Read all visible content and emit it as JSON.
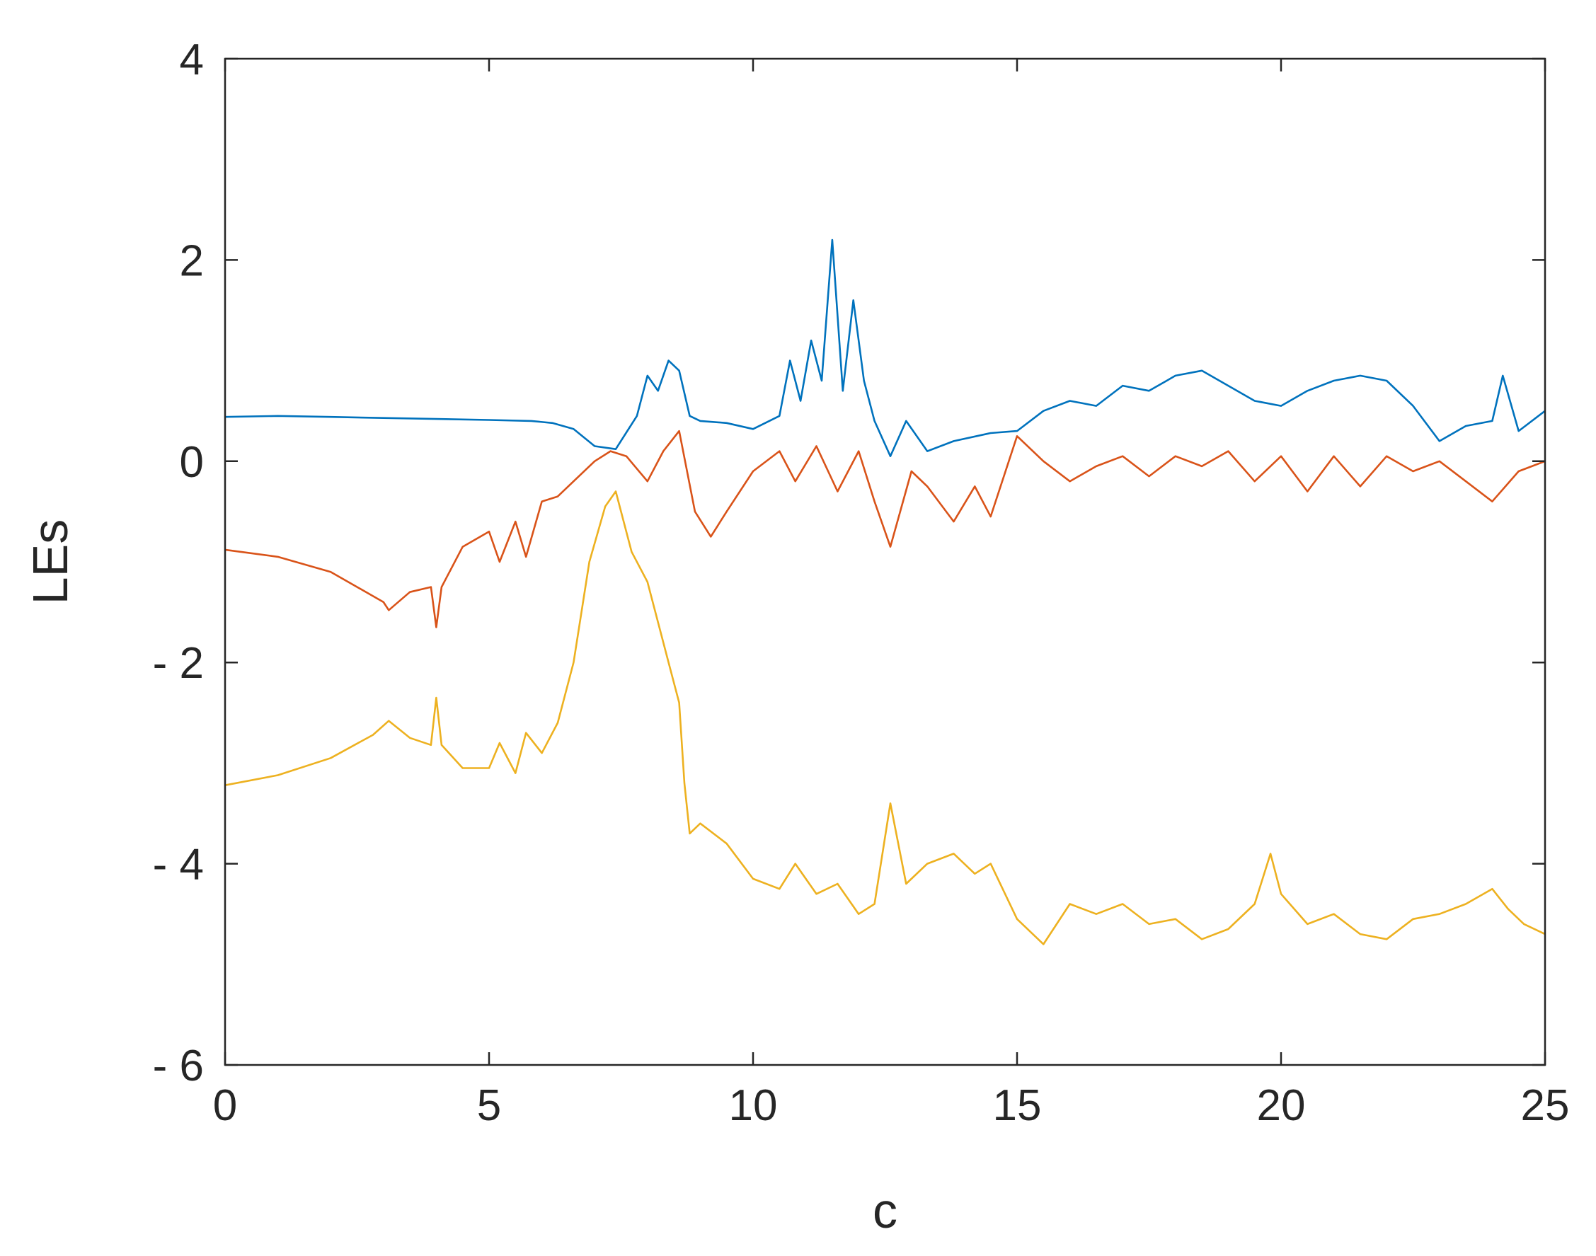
{
  "chart_data": {
    "type": "line",
    "xlabel": "c",
    "ylabel": "LEs",
    "xlim": [
      0,
      25
    ],
    "ylim": [
      -6,
      4
    ],
    "xticks": [
      0,
      5,
      10,
      15,
      20,
      25
    ],
    "xtick_labels": [
      "0",
      "5",
      "10",
      "15",
      "20",
      "25"
    ],
    "yticks": [
      -6,
      -4,
      -2,
      0,
      2,
      4
    ],
    "ytick_labels": [
      "- 6",
      "- 4",
      "- 2",
      "0",
      "2",
      "4"
    ],
    "grid": false,
    "legend": false,
    "box": true,
    "series": [
      {
        "color": "#0072BD",
        "x": [
          0,
          1,
          2,
          3,
          4,
          5,
          5.8,
          6.2,
          6.6,
          7.0,
          7.4,
          7.8,
          8.0,
          8.2,
          8.4,
          8.6,
          8.8,
          9.0,
          9.5,
          10.0,
          10.5,
          10.7,
          10.9,
          11.1,
          11.3,
          11.5,
          11.7,
          11.9,
          12.1,
          12.3,
          12.6,
          12.9,
          13.3,
          13.8,
          14.5,
          15.0,
          15.5,
          16.0,
          16.5,
          17.0,
          17.5,
          18.0,
          18.5,
          19.0,
          19.5,
          20.0,
          20.5,
          21.0,
          21.5,
          22.0,
          22.5,
          23.0,
          23.5,
          24.0,
          24.2,
          24.5,
          25.0
        ],
        "y": [
          0.44,
          0.45,
          0.44,
          0.43,
          0.42,
          0.41,
          0.4,
          0.38,
          0.32,
          0.15,
          0.12,
          0.45,
          0.85,
          0.7,
          1.0,
          0.9,
          0.45,
          0.4,
          0.38,
          0.32,
          0.45,
          1.0,
          0.6,
          1.2,
          0.8,
          2.2,
          0.7,
          1.6,
          0.8,
          0.4,
          0.05,
          0.4,
          0.1,
          0.2,
          0.28,
          0.3,
          0.5,
          0.6,
          0.55,
          0.75,
          0.7,
          0.85,
          0.9,
          0.75,
          0.6,
          0.55,
          0.7,
          0.8,
          0.85,
          0.8,
          0.55,
          0.2,
          0.35,
          0.4,
          0.85,
          0.3,
          0.5
        ]
      },
      {
        "color": "#D95319",
        "x": [
          0,
          1,
          2,
          3,
          3.1,
          3.5,
          3.9,
          4.0,
          4.1,
          4.5,
          5.0,
          5.2,
          5.5,
          5.7,
          6.0,
          6.3,
          6.6,
          7.0,
          7.3,
          7.6,
          8.0,
          8.3,
          8.6,
          8.9,
          9.2,
          9.5,
          10.0,
          10.5,
          10.8,
          11.2,
          11.6,
          12.0,
          12.3,
          12.6,
          13.0,
          13.3,
          13.8,
          14.2,
          14.5,
          15.0,
          15.5,
          16.0,
          16.5,
          17.0,
          17.5,
          18.0,
          18.5,
          19.0,
          19.5,
          20.0,
          20.5,
          21.0,
          21.5,
          22.0,
          22.5,
          23.0,
          23.5,
          24.0,
          24.5,
          25.0
        ],
        "y": [
          -0.88,
          -0.95,
          -1.1,
          -1.4,
          -1.48,
          -1.3,
          -1.25,
          -1.65,
          -1.25,
          -0.85,
          -0.7,
          -1.0,
          -0.6,
          -0.95,
          -0.4,
          -0.35,
          -0.2,
          0.0,
          0.1,
          0.05,
          -0.2,
          0.1,
          0.3,
          -0.5,
          -0.75,
          -0.5,
          -0.1,
          0.1,
          -0.2,
          0.15,
          -0.3,
          0.1,
          -0.4,
          -0.85,
          -0.1,
          -0.25,
          -0.6,
          -0.25,
          -0.55,
          0.25,
          0.0,
          -0.2,
          -0.05,
          0.05,
          -0.15,
          0.05,
          -0.05,
          0.1,
          -0.2,
          0.05,
          -0.3,
          0.05,
          -0.25,
          0.05,
          -0.1,
          0.0,
          -0.2,
          -0.4,
          -0.1,
          0.0
        ]
      },
      {
        "color": "#EDB120",
        "x": [
          0,
          1,
          2,
          2.8,
          3.1,
          3.5,
          3.9,
          4.0,
          4.1,
          4.5,
          5.0,
          5.2,
          5.5,
          5.7,
          6.0,
          6.3,
          6.6,
          6.9,
          7.2,
          7.4,
          7.7,
          8.0,
          8.2,
          8.4,
          8.6,
          8.7,
          8.8,
          9.0,
          9.5,
          10.0,
          10.5,
          10.8,
          11.2,
          11.6,
          12.0,
          12.3,
          12.6,
          12.9,
          13.3,
          13.8,
          14.2,
          14.5,
          15.0,
          15.5,
          16.0,
          16.5,
          17.0,
          17.5,
          18.0,
          18.5,
          19.0,
          19.5,
          19.8,
          20.0,
          20.5,
          21.0,
          21.5,
          22.0,
          22.5,
          23.0,
          23.5,
          24.0,
          24.3,
          24.6,
          25.0
        ],
        "y": [
          -3.22,
          -3.12,
          -2.95,
          -2.72,
          -2.58,
          -2.75,
          -2.82,
          -2.35,
          -2.82,
          -3.05,
          -3.05,
          -2.8,
          -3.1,
          -2.7,
          -2.9,
          -2.6,
          -2.0,
          -1.0,
          -0.45,
          -0.3,
          -0.9,
          -1.2,
          -1.6,
          -2.0,
          -2.4,
          -3.2,
          -3.7,
          -3.6,
          -3.8,
          -4.15,
          -4.25,
          -4.0,
          -4.3,
          -4.2,
          -4.5,
          -4.4,
          -3.4,
          -4.2,
          -4.0,
          -3.9,
          -4.1,
          -4.0,
          -4.55,
          -4.8,
          -4.4,
          -4.5,
          -4.4,
          -4.6,
          -4.55,
          -4.75,
          -4.65,
          -4.4,
          -3.9,
          -4.3,
          -4.6,
          -4.5,
          -4.7,
          -4.75,
          -4.55,
          -4.5,
          -4.4,
          -4.25,
          -4.45,
          -4.6,
          -4.7
        ]
      }
    ]
  }
}
